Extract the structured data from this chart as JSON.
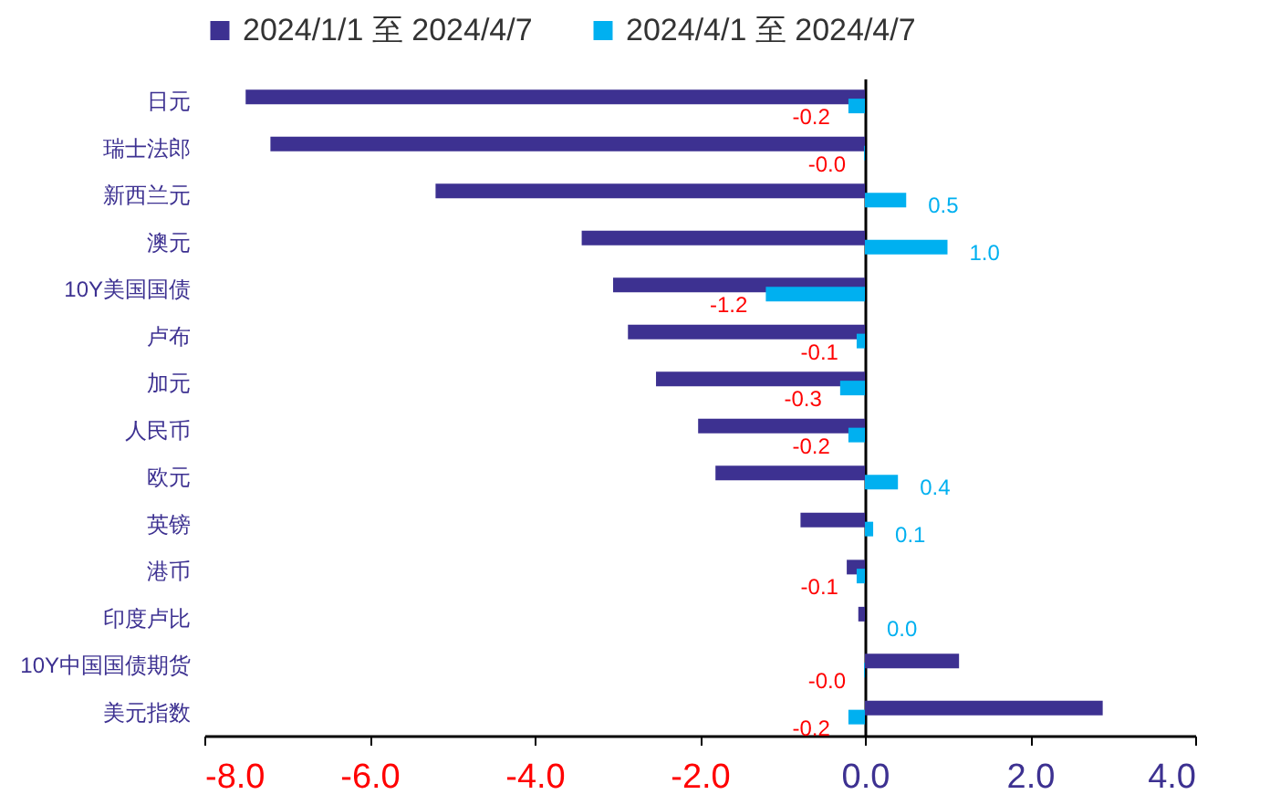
{
  "chart_data": {
    "type": "bar",
    "orientation": "horizontal",
    "categories": [
      "日元",
      "瑞士法郎",
      "新西兰元",
      "澳元",
      "10Y美国国债",
      "卢布",
      "加元",
      "人民币",
      "欧元",
      "英镑",
      "港币",
      "印度卢比",
      "10Y中国国债期货",
      "美元指数"
    ],
    "series": [
      {
        "name": "2024/1/1 至 2024/4/7",
        "color": "#3d3191",
        "values": [
          -7.5,
          -7.2,
          -5.2,
          -3.43,
          -3.05,
          -2.87,
          -2.53,
          -2.02,
          -1.81,
          -0.78,
          -0.22,
          -0.08,
          1.14,
          2.88
        ]
      },
      {
        "name": "2024/4/1 至 2024/4/7",
        "color": "#00b0f0",
        "values": [
          -0.2,
          -0.01,
          0.5,
          1.0,
          -1.2,
          -0.1,
          -0.3,
          -0.2,
          0.4,
          0.1,
          -0.1,
          0.0,
          -0.01,
          -0.2
        ],
        "value_labels": [
          "-0.2",
          "-0.0",
          "0.5",
          "1.0",
          "-1.2",
          "-0.1",
          "-0.3",
          "-0.2",
          "0.4",
          "0.1",
          "-0.1",
          "0.0",
          "-0.0",
          "-0.2"
        ]
      }
    ],
    "xlim": [
      -8,
      4
    ],
    "xticks": [
      {
        "value": -8,
        "label": "-8.0"
      },
      {
        "value": -6,
        "label": "-6.0"
      },
      {
        "value": -4,
        "label": "-4.0"
      },
      {
        "value": -2,
        "label": "-2.0"
      },
      {
        "value": 0,
        "label": "0.0"
      },
      {
        "value": 2,
        "label": "2.0"
      },
      {
        "value": 4,
        "label": "4.0"
      }
    ],
    "legend": "top"
  }
}
